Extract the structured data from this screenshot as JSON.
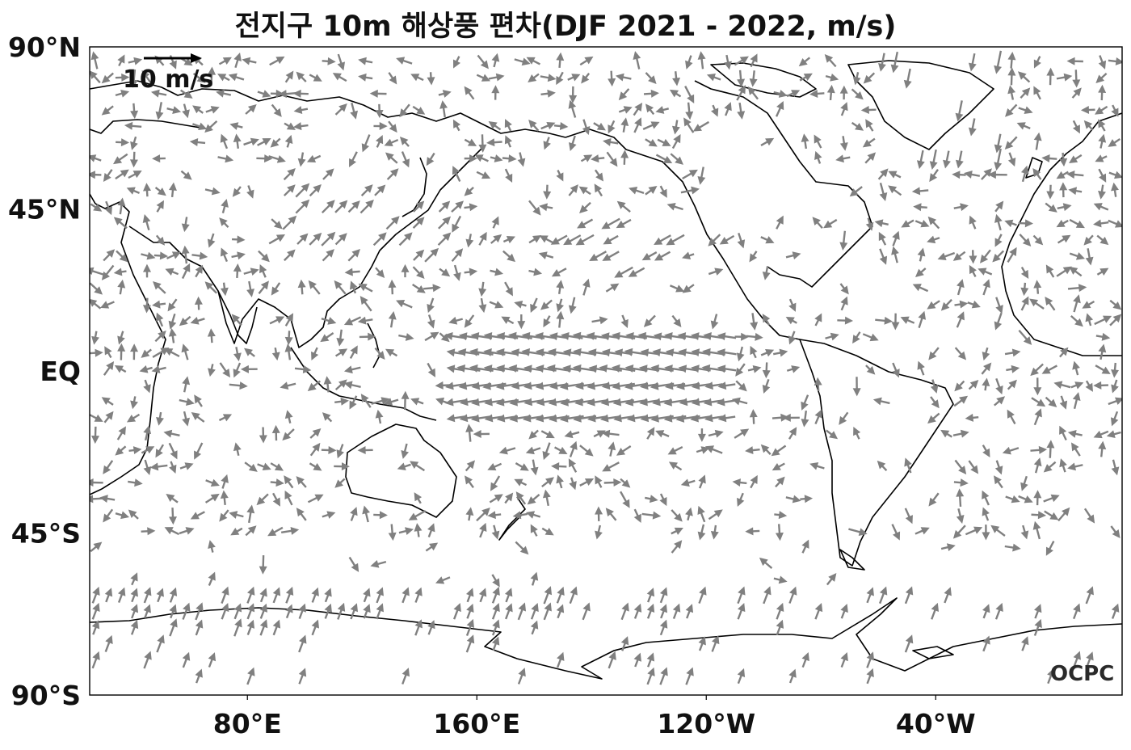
{
  "title": "전지구 10m 해상풍 편차(DJF 2021 - 2022, m/s)",
  "y_axis": {
    "ticks": [
      {
        "label": "90°N",
        "lat": 90
      },
      {
        "label": "45°N",
        "lat": 45
      },
      {
        "label": "EQ",
        "lat": 0
      },
      {
        "label": "45°S",
        "lat": -45
      },
      {
        "label": "90°S",
        "lat": -90
      }
    ]
  },
  "x_axis": {
    "ticks": [
      {
        "label": "80°E",
        "lon": 80
      },
      {
        "label": "160°E",
        "lon": 160
      },
      {
        "label": "120°W",
        "lon": 240
      },
      {
        "label": "40°W",
        "lon": 320
      }
    ]
  },
  "reference_vector": {
    "label": "10 m/s",
    "speed": 10
  },
  "logo": "OCPC",
  "colors": {
    "vectors": "#808080",
    "coastline": "#000000",
    "frame": "#000000"
  },
  "map_extent": {
    "lon_min": 25,
    "lon_max": 385,
    "lat_min": -90,
    "lat_max": 90,
    "projection": "equirectangular",
    "central_longitude": 205
  }
}
